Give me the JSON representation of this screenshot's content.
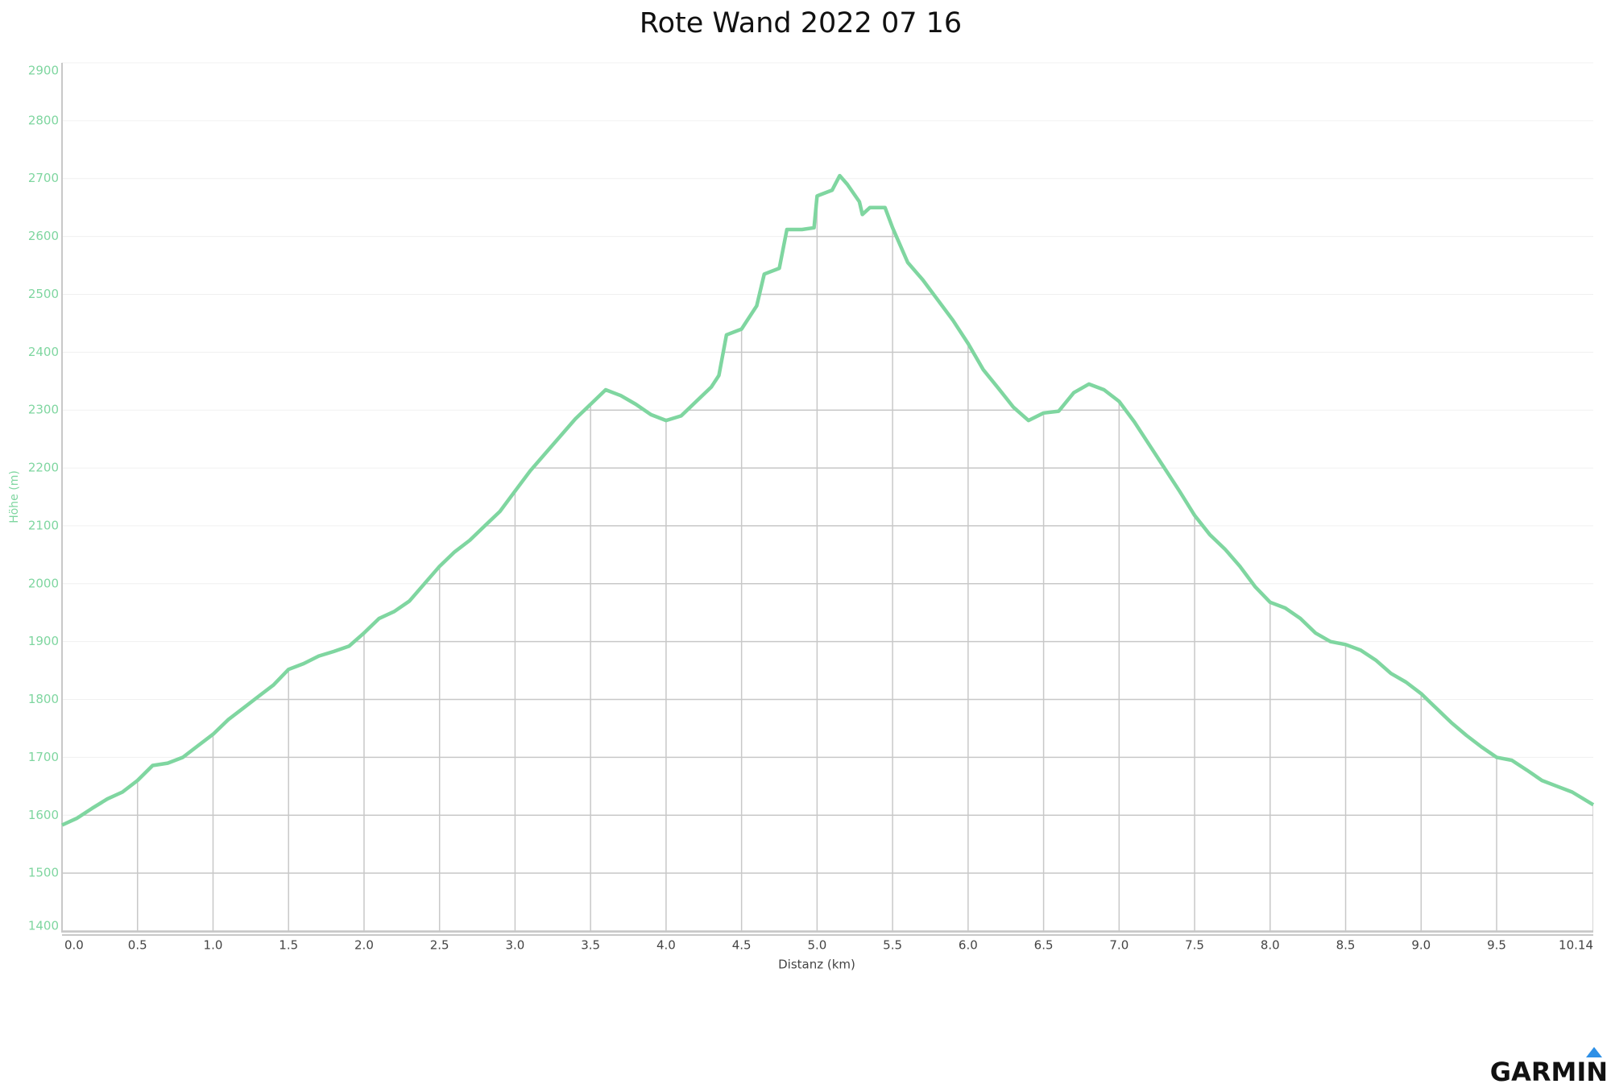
{
  "chart_data": {
    "type": "line",
    "title": "Rote Wand 2022 07 16",
    "x_label": "Distanz (km)",
    "y_label": "Höhe (m)",
    "logo": "GARMIN",
    "color": "#7fd6a0",
    "grid": true,
    "xlim": [
      0,
      10.14
    ],
    "ylim": [
      1400,
      2900
    ],
    "xticks": [
      {
        "value": 0,
        "label": "0.0"
      },
      0.5,
      {
        "value": 1,
        "label": "1.0"
      },
      1.5,
      {
        "value": 2,
        "label": "2.0"
      },
      2.5,
      {
        "value": 3,
        "label": "3.0"
      },
      3.5,
      {
        "value": 4,
        "label": "4.0"
      },
      4.5,
      {
        "value": 5,
        "label": "5.0"
      },
      5.5,
      {
        "value": 6,
        "label": "6.0"
      },
      6.5,
      {
        "value": 7,
        "label": "7.0"
      },
      7.5,
      {
        "value": 8,
        "label": "8.0"
      },
      8.5,
      {
        "value": 9,
        "label": "9.0"
      },
      9.5,
      10.14
    ],
    "yticks": [
      1400,
      1500,
      1600,
      1700,
      1800,
      1900,
      2000,
      2100,
      2200,
      2300,
      2400,
      2500,
      2600,
      2700,
      2800,
      2900
    ],
    "x": [
      0,
      0.1,
      0.2,
      0.3,
      0.4,
      0.5,
      0.6,
      0.7,
      0.8,
      0.9,
      1.0,
      1.1,
      1.2,
      1.3,
      1.4,
      1.5,
      1.6,
      1.7,
      1.8,
      1.9,
      2.0,
      2.1,
      2.2,
      2.3,
      2.4,
      2.5,
      2.6,
      2.7,
      2.8,
      2.9,
      3.0,
      3.1,
      3.2,
      3.3,
      3.4,
      3.5,
      3.6,
      3.7,
      3.8,
      3.9,
      4.0,
      4.1,
      4.2,
      4.3,
      4.35,
      4.4,
      4.5,
      4.6,
      4.65,
      4.75,
      4.8,
      4.9,
      4.98,
      5.0,
      5.1,
      5.15,
      5.2,
      5.28,
      5.3,
      5.35,
      5.45,
      5.5,
      5.6,
      5.7,
      5.8,
      5.9,
      6.0,
      6.1,
      6.2,
      6.3,
      6.4,
      6.5,
      6.6,
      6.7,
      6.8,
      6.9,
      7.0,
      7.1,
      7.2,
      7.3,
      7.4,
      7.5,
      7.6,
      7.7,
      7.8,
      7.9,
      8.0,
      8.1,
      8.2,
      8.3,
      8.4,
      8.5,
      8.6,
      8.7,
      8.8,
      8.9,
      9.0,
      9.1,
      9.2,
      9.3,
      9.4,
      9.5,
      9.6,
      9.7,
      9.8,
      9.9,
      10.0,
      10.14
    ],
    "values": [
      1583,
      1595,
      1612,
      1628,
      1640,
      1660,
      1686,
      1690,
      1700,
      1720,
      1740,
      1765,
      1785,
      1805,
      1825,
      1852,
      1862,
      1875,
      1883,
      1892,
      1915,
      1940,
      1952,
      1970,
      2000,
      2030,
      2055,
      2075,
      2100,
      2125,
      2160,
      2195,
      2225,
      2255,
      2285,
      2310,
      2335,
      2325,
      2310,
      2292,
      2282,
      2290,
      2315,
      2340,
      2360,
      2430,
      2440,
      2480,
      2535,
      2545,
      2612,
      2612,
      2615,
      2670,
      2680,
      2705,
      2690,
      2660,
      2638,
      2650,
      2650,
      2615,
      2555,
      2525,
      2490,
      2455,
      2415,
      2370,
      2338,
      2305,
      2282,
      2295,
      2298,
      2330,
      2345,
      2335,
      2315,
      2280,
      2240,
      2200,
      2160,
      2118,
      2085,
      2060,
      2030,
      1995,
      1968,
      1958,
      1940,
      1915,
      1900,
      1895,
      1885,
      1868,
      1845,
      1830,
      1810,
      1785,
      1760,
      1738,
      1718,
      1700,
      1695,
      1678,
      1660,
      1650,
      1640,
      1618
    ]
  }
}
